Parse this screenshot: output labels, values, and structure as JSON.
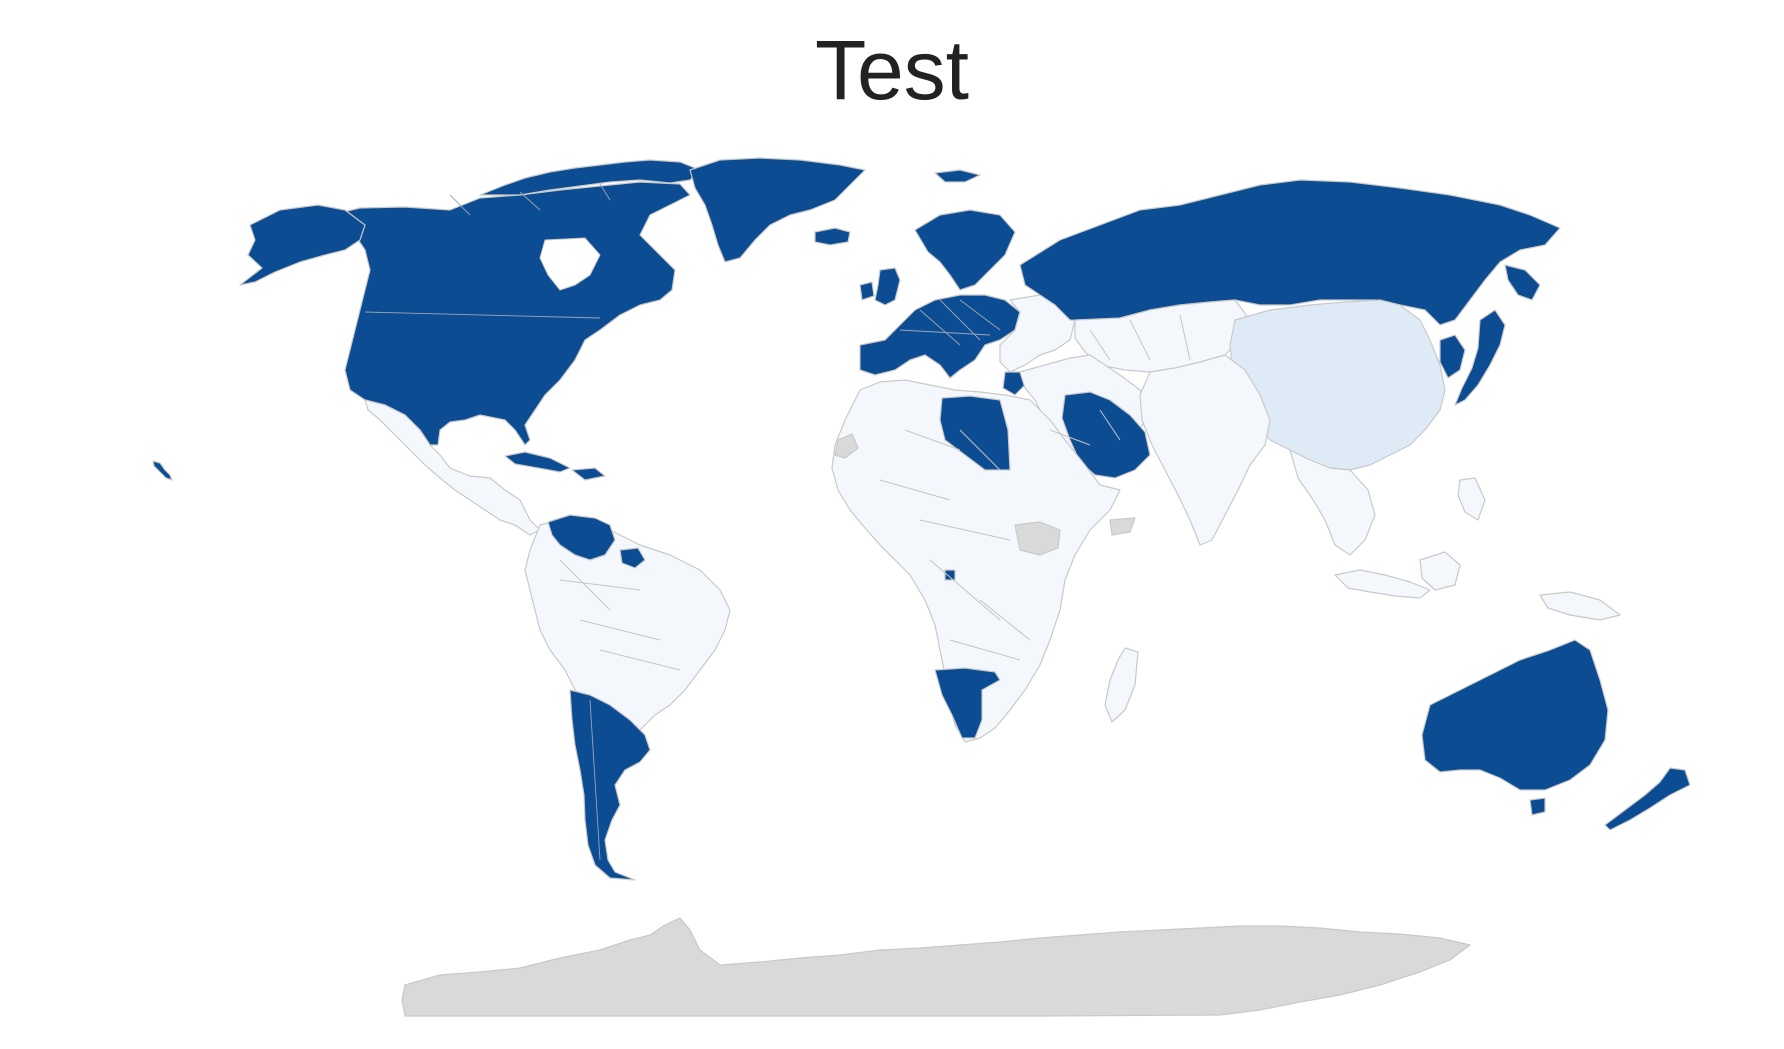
{
  "title": "Test",
  "colors": {
    "high": "#0b4c93",
    "low": "#f4f8fd",
    "mid": "#deebf7",
    "no_data": "#d9d9d9",
    "border": "#c9c9c9"
  },
  "regions": [
    {
      "id": "north-america",
      "class": "high"
    },
    {
      "id": "alaska",
      "class": "high"
    },
    {
      "id": "greenland",
      "class": "high"
    },
    {
      "id": "iceland",
      "class": "high"
    },
    {
      "id": "svalbard",
      "class": "high"
    },
    {
      "id": "mexico-central-america",
      "class": "low"
    },
    {
      "id": "cuba-caribbean",
      "class": "high"
    },
    {
      "id": "hawaii",
      "class": "high"
    },
    {
      "id": "venezuela",
      "class": "high"
    },
    {
      "id": "guiana",
      "class": "high"
    },
    {
      "id": "south-america",
      "class": "low"
    },
    {
      "id": "argentina-chile",
      "class": "high"
    },
    {
      "id": "uk-ireland",
      "class": "high"
    },
    {
      "id": "scandinavia",
      "class": "high"
    },
    {
      "id": "western-europe",
      "class": "high"
    },
    {
      "id": "eastern-europe",
      "class": "low"
    },
    {
      "id": "greece",
      "class": "high"
    },
    {
      "id": "russia",
      "class": "high"
    },
    {
      "id": "central-asia",
      "class": "low"
    },
    {
      "id": "china",
      "class": "mid"
    },
    {
      "id": "japan",
      "class": "high"
    },
    {
      "id": "korea",
      "class": "high"
    },
    {
      "id": "middle-east",
      "class": "low"
    },
    {
      "id": "saudi-arabia",
      "class": "high"
    },
    {
      "id": "india-south-asia",
      "class": "low"
    },
    {
      "id": "southeast-asia",
      "class": "low"
    },
    {
      "id": "indonesia",
      "class": "low"
    },
    {
      "id": "africa",
      "class": "low"
    },
    {
      "id": "libya",
      "class": "high"
    },
    {
      "id": "namibia",
      "class": "high"
    },
    {
      "id": "south-sudan",
      "class": "no_data"
    },
    {
      "id": "somaliland",
      "class": "no_data"
    },
    {
      "id": "western-sahara",
      "class": "no_data"
    },
    {
      "id": "madagascar",
      "class": "low"
    },
    {
      "id": "australia",
      "class": "high"
    },
    {
      "id": "new-zealand",
      "class": "high"
    },
    {
      "id": "papua-new-guinea",
      "class": "low"
    },
    {
      "id": "antarctica",
      "class": "no_data"
    }
  ]
}
